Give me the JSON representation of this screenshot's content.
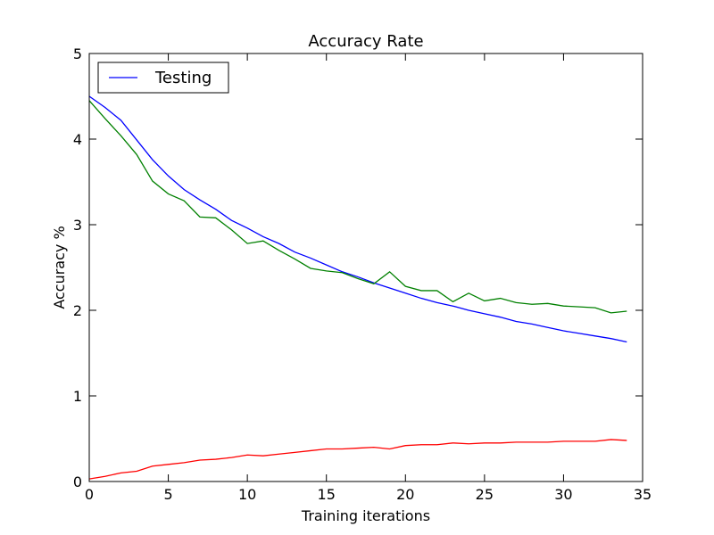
{
  "chart_data": {
    "type": "line",
    "title": "Accuracy Rate",
    "xlabel": "Training iterations",
    "ylabel": "Accuracy %",
    "xlim": [
      0,
      35
    ],
    "ylim": [
      0,
      5
    ],
    "xticks": [
      0,
      5,
      10,
      15,
      20,
      25,
      30,
      35
    ],
    "yticks": [
      0,
      1,
      2,
      3,
      4,
      5
    ],
    "grid": false,
    "legend_position": "top-left",
    "x": [
      0,
      1,
      2,
      3,
      4,
      5,
      6,
      7,
      8,
      9,
      10,
      11,
      12,
      13,
      14,
      15,
      16,
      17,
      18,
      19,
      20,
      21,
      22,
      23,
      24,
      25,
      26,
      27,
      28,
      29,
      30,
      31,
      32,
      33,
      34
    ],
    "series": [
      {
        "name": "Testing",
        "color": "#0000ff",
        "values": [
          4.5,
          4.37,
          4.22,
          3.99,
          3.76,
          3.57,
          3.41,
          3.29,
          3.18,
          3.05,
          2.96,
          2.86,
          2.78,
          2.68,
          2.61,
          2.53,
          2.45,
          2.39,
          2.32,
          2.26,
          2.2,
          2.14,
          2.09,
          2.05,
          2.0,
          1.96,
          1.92,
          1.87,
          1.84,
          1.8,
          1.76,
          1.73,
          1.7,
          1.67,
          1.63
        ]
      },
      {
        "color": "#008000",
        "values": [
          4.45,
          4.24,
          4.04,
          3.82,
          3.51,
          3.36,
          3.28,
          3.09,
          3.08,
          2.94,
          2.78,
          2.81,
          2.7,
          2.6,
          2.49,
          2.46,
          2.44,
          2.37,
          2.31,
          2.45,
          2.28,
          2.23,
          2.23,
          2.1,
          2.2,
          2.11,
          2.14,
          2.09,
          2.07,
          2.08,
          2.05,
          2.04,
          2.03,
          1.97,
          1.99
        ]
      },
      {
        "color": "#ff0000",
        "values": [
          0.03,
          0.06,
          0.1,
          0.12,
          0.18,
          0.2,
          0.22,
          0.25,
          0.26,
          0.28,
          0.31,
          0.3,
          0.32,
          0.34,
          0.36,
          0.38,
          0.38,
          0.39,
          0.4,
          0.38,
          0.42,
          0.43,
          0.43,
          0.45,
          0.44,
          0.45,
          0.45,
          0.46,
          0.46,
          0.46,
          0.47,
          0.47,
          0.47,
          0.49,
          0.48
        ]
      }
    ]
  }
}
